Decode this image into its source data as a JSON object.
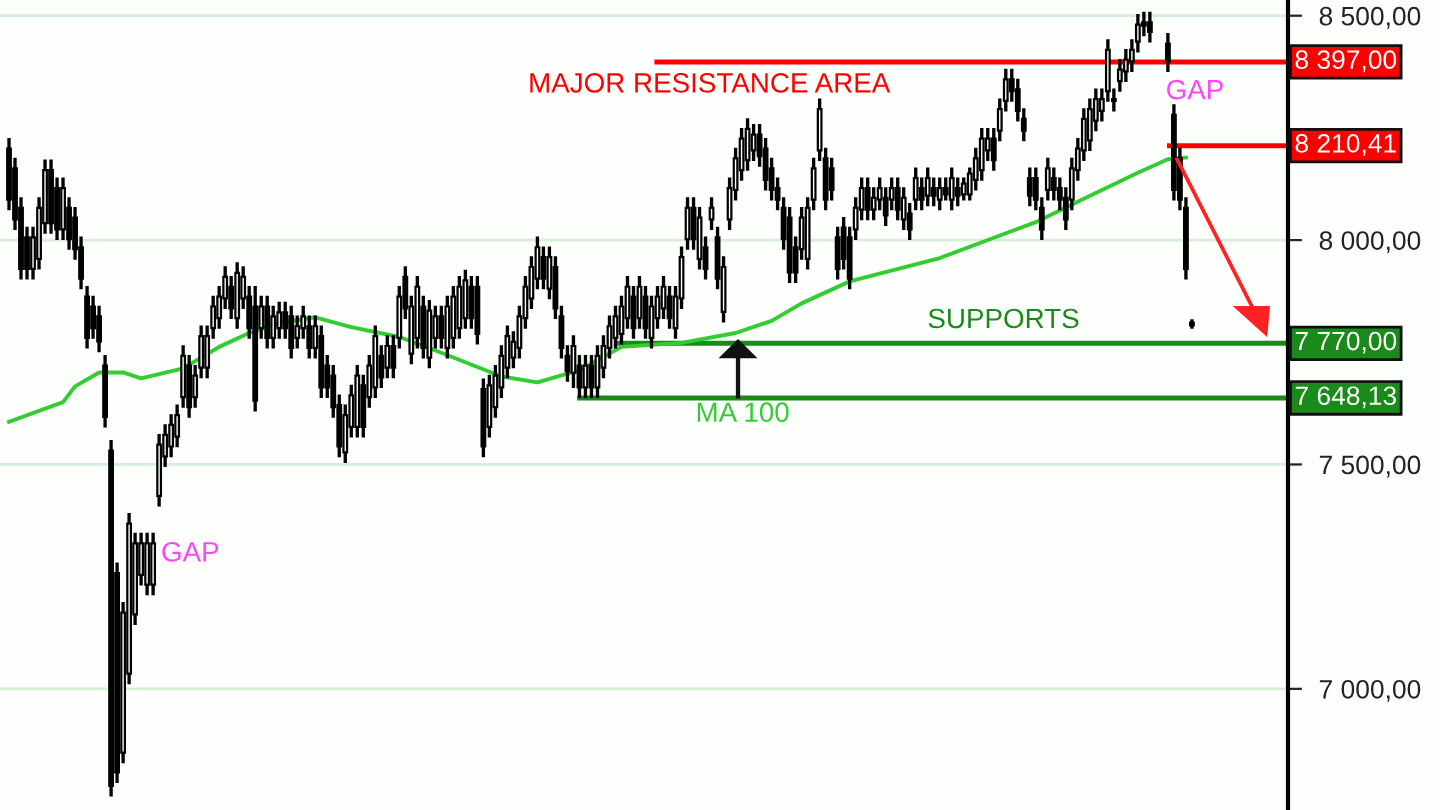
{
  "chart_data": {
    "type": "candlestick",
    "categories": [
      null,
      null,
      null,
      null,
      null,
      null,
      null,
      null,
      null,
      null,
      null,
      null,
      null,
      null,
      null,
      null,
      null,
      null,
      null,
      null,
      null,
      null,
      null,
      null,
      null,
      null,
      null,
      null,
      null,
      null,
      null,
      null,
      null,
      null,
      null,
      null,
      null,
      null,
      null,
      null,
      null,
      null,
      null,
      null,
      null,
      null,
      null,
      null,
      null,
      null,
      null,
      null,
      null,
      null,
      null,
      null,
      null,
      null,
      null,
      null,
      null,
      null,
      null,
      null,
      null,
      null,
      null,
      null,
      null,
      null,
      null,
      null,
      null,
      null,
      null,
      null,
      null,
      null,
      null,
      null,
      null,
      null,
      null,
      null,
      null,
      null,
      null,
      null,
      null,
      null,
      null,
      null,
      null,
      null,
      null,
      null,
      null,
      null,
      null,
      null,
      null,
      null,
      null,
      null,
      null,
      null,
      null,
      null,
      null,
      null,
      null,
      null,
      null,
      null,
      null,
      null,
      null,
      null,
      null,
      null,
      null,
      null,
      null,
      null,
      null,
      null,
      null,
      null,
      null,
      null,
      null,
      null,
      null,
      null,
      null,
      null,
      null,
      null,
      null,
      null,
      null,
      null,
      null,
      null,
      null,
      null,
      null,
      null,
      null,
      null,
      null,
      null,
      null,
      null,
      null,
      null,
      null,
      null,
      null,
      null,
      null,
      null,
      null,
      null,
      null,
      null,
      null,
      null,
      null,
      null,
      null,
      null,
      null,
      null,
      null,
      null,
      null,
      null,
      null,
      null,
      null,
      null,
      null,
      null,
      null,
      null,
      null,
      null,
      null,
      null,
      null,
      null,
      null,
      null,
      null,
      null,
      null,
      null
    ],
    "ohlc": [
      [
        8204,
        8224,
        8070,
        8090
      ],
      [
        8160,
        8180,
        8026,
        8046
      ],
      [
        8072,
        8092,
        7916,
        7936
      ],
      [
        8006,
        8026,
        7916,
        7936
      ],
      [
        7936,
        8026,
        7916,
        8006
      ],
      [
        7958,
        8092,
        7938,
        8072
      ],
      [
        8038,
        8176,
        8018,
        8156
      ],
      [
        8156,
        8176,
        8018,
        8038
      ],
      [
        8116,
        8136,
        8004,
        8024
      ],
      [
        8024,
        8136,
        8004,
        8116
      ],
      [
        8072,
        8092,
        7982,
        8002
      ],
      [
        8050,
        8070,
        7960,
        7980
      ],
      [
        7984,
        8004,
        7894,
        7914
      ],
      [
        7874,
        7894,
        7762,
        7782
      ],
      [
        7852,
        7872,
        7784,
        7804
      ],
      [
        7830,
        7850,
        7754,
        7774
      ],
      [
        7720,
        7740,
        7586,
        7606
      ],
      [
        7531,
        7551,
        6764,
        6784
      ],
      [
        7258,
        7278,
        6794,
        6814
      ],
      [
        6858,
        7190,
        6838,
        7170
      ],
      [
        7034,
        7388,
        7014,
        7368
      ],
      [
        7166,
        7344,
        7146,
        7324
      ],
      [
        7254,
        7344,
        7234,
        7324
      ],
      [
        7232,
        7344,
        7212,
        7324
      ],
      [
        7232,
        7344,
        7212,
        7324
      ],
      [
        7430,
        7564,
        7410,
        7544
      ],
      [
        7518,
        7586,
        7498,
        7566
      ],
      [
        7540,
        7608,
        7520,
        7588
      ],
      [
        7562,
        7630,
        7542,
        7610
      ],
      [
        7650,
        7762,
        7630,
        7742
      ],
      [
        7720,
        7740,
        7608,
        7628
      ],
      [
        7650,
        7718,
        7630,
        7698
      ],
      [
        7716,
        7806,
        7696,
        7786
      ],
      [
        7716,
        7806,
        7696,
        7786
      ],
      [
        7804,
        7872,
        7784,
        7852
      ],
      [
        7826,
        7894,
        7806,
        7874
      ],
      [
        7870,
        7938,
        7850,
        7918
      ],
      [
        7896,
        7916,
        7828,
        7848
      ],
      [
        7826,
        7947,
        7806,
        7927
      ],
      [
        7870,
        7938,
        7850,
        7918
      ],
      [
        7874,
        7894,
        7784,
        7804
      ],
      [
        7852,
        7894,
        7622,
        7642
      ],
      [
        7804,
        7872,
        7784,
        7852
      ],
      [
        7852,
        7872,
        7762,
        7782
      ],
      [
        7782,
        7850,
        7762,
        7830
      ],
      [
        7804,
        7859,
        7784,
        7839
      ],
      [
        7839,
        7859,
        7784,
        7804
      ],
      [
        7830,
        7850,
        7740,
        7760
      ],
      [
        7782,
        7828,
        7762,
        7808
      ],
      [
        7804,
        7850,
        7784,
        7830
      ],
      [
        7808,
        7828,
        7740,
        7760
      ],
      [
        7760,
        7828,
        7740,
        7808
      ],
      [
        7786,
        7806,
        7652,
        7672
      ],
      [
        7720,
        7740,
        7652,
        7672
      ],
      [
        7698,
        7718,
        7608,
        7628
      ],
      [
        7632,
        7652,
        7520,
        7540
      ],
      [
        7527,
        7630,
        7507,
        7610
      ],
      [
        7584,
        7674,
        7564,
        7654
      ],
      [
        7584,
        7718,
        7564,
        7698
      ],
      [
        7676,
        7696,
        7564,
        7584
      ],
      [
        7650,
        7740,
        7630,
        7720
      ],
      [
        7672,
        7806,
        7652,
        7786
      ],
      [
        7742,
        7762,
        7674,
        7694
      ],
      [
        7716,
        7784,
        7696,
        7764
      ],
      [
        7764,
        7784,
        7696,
        7716
      ],
      [
        7782,
        7894,
        7762,
        7874
      ],
      [
        7918,
        7938,
        7828,
        7848
      ],
      [
        7747,
        7872,
        7727,
        7852
      ],
      [
        7782,
        7916,
        7762,
        7896
      ],
      [
        7852,
        7872,
        7740,
        7760
      ],
      [
        7738,
        7863,
        7718,
        7843
      ],
      [
        7782,
        7850,
        7762,
        7830
      ],
      [
        7830,
        7850,
        7762,
        7782
      ],
      [
        7760,
        7872,
        7740,
        7852
      ],
      [
        7782,
        7894,
        7762,
        7874
      ],
      [
        7804,
        7916,
        7784,
        7896
      ],
      [
        7826,
        7930,
        7806,
        7910
      ],
      [
        7896,
        7916,
        7806,
        7826
      ],
      [
        7896,
        7916,
        7771,
        7791
      ],
      [
        7668,
        7688,
        7520,
        7540
      ],
      [
        7584,
        7696,
        7564,
        7676
      ],
      [
        7628,
        7718,
        7608,
        7698
      ],
      [
        7672,
        7762,
        7652,
        7742
      ],
      [
        7716,
        7806,
        7696,
        7786
      ],
      [
        7738,
        7793,
        7718,
        7773
      ],
      [
        7760,
        7850,
        7740,
        7830
      ],
      [
        7826,
        7916,
        7806,
        7896
      ],
      [
        7870,
        7960,
        7850,
        7940
      ],
      [
        7914,
        8004,
        7894,
        7984
      ],
      [
        7962,
        7982,
        7894,
        7914
      ],
      [
        7892,
        7982,
        7872,
        7962
      ],
      [
        7940,
        7960,
        7828,
        7848
      ],
      [
        7830,
        7850,
        7740,
        7760
      ],
      [
        7742,
        7762,
        7688,
        7708
      ],
      [
        7704,
        7784,
        7674,
        7764
      ],
      [
        7720,
        7740,
        7652,
        7672
      ],
      [
        7672,
        7740,
        7652,
        7720
      ],
      [
        7720,
        7740,
        7652,
        7672
      ],
      [
        7672,
        7762,
        7652,
        7742
      ],
      [
        7716,
        7784,
        7696,
        7764
      ],
      [
        7760,
        7828,
        7740,
        7808
      ],
      [
        7782,
        7850,
        7762,
        7830
      ],
      [
        7791,
        7872,
        7771,
        7852
      ],
      [
        7826,
        7916,
        7806,
        7896
      ],
      [
        7874,
        7894,
        7784,
        7804
      ],
      [
        7826,
        7916,
        7806,
        7896
      ],
      [
        7874,
        7894,
        7784,
        7804
      ],
      [
        7782,
        7872,
        7762,
        7852
      ],
      [
        7826,
        7894,
        7806,
        7874
      ],
      [
        7848,
        7916,
        7828,
        7896
      ],
      [
        7874,
        7894,
        7806,
        7826
      ],
      [
        7804,
        7894,
        7784,
        7874
      ],
      [
        7870,
        7982,
        7850,
        7962
      ],
      [
        8002,
        8092,
        7982,
        8072
      ],
      [
        8072,
        8092,
        7982,
        8002
      ],
      [
        7958,
        8070,
        7938,
        8050
      ],
      [
        7984,
        8004,
        7916,
        7936
      ],
      [
        8046,
        8092,
        8026,
        8072
      ],
      [
        8006,
        8026,
        7894,
        7914
      ],
      [
        7840,
        7960,
        7820,
        7940
      ],
      [
        8046,
        8136,
        8026,
        8116
      ],
      [
        8112,
        8202,
        8092,
        8182
      ],
      [
        8156,
        8246,
        8136,
        8226
      ],
      [
        8178,
        8268,
        8158,
        8248
      ],
      [
        8200,
        8255,
        8180,
        8235
      ],
      [
        8235,
        8255,
        8167,
        8187
      ],
      [
        8204,
        8224,
        8114,
        8134
      ],
      [
        8160,
        8180,
        8092,
        8112
      ],
      [
        8116,
        8136,
        8070,
        8090
      ],
      [
        8072,
        8092,
        7982,
        8002
      ],
      [
        8050,
        8070,
        7908,
        7928
      ],
      [
        7984,
        8004,
        7908,
        7928
      ],
      [
        7980,
        8070,
        7960,
        8050
      ],
      [
        7958,
        8092,
        7938,
        8072
      ],
      [
        8090,
        8180,
        8070,
        8160
      ],
      [
        8200,
        8312,
        8180,
        8292
      ],
      [
        8182,
        8202,
        8070,
        8090
      ],
      [
        8160,
        8180,
        8092,
        8112
      ],
      [
        8006,
        8026,
        7916,
        7936
      ],
      [
        8028,
        8048,
        7938,
        7958
      ],
      [
        8006,
        8026,
        7894,
        7914
      ],
      [
        8024,
        8092,
        8004,
        8072
      ],
      [
        8068,
        8136,
        8048,
        8116
      ],
      [
        8116,
        8136,
        8048,
        8068
      ],
      [
        8068,
        8114,
        8048,
        8094
      ],
      [
        8090,
        8136,
        8070,
        8116
      ],
      [
        8094,
        8114,
        8035,
        8055
      ],
      [
        8090,
        8136,
        8070,
        8116
      ],
      [
        8116,
        8136,
        8048,
        8068
      ],
      [
        8046,
        8114,
        8026,
        8094
      ],
      [
        8059,
        8079,
        8004,
        8024
      ],
      [
        8090,
        8158,
        8070,
        8138
      ],
      [
        8116,
        8136,
        8070,
        8090
      ],
      [
        8099,
        8158,
        8079,
        8138
      ],
      [
        8116,
        8136,
        8079,
        8099
      ],
      [
        8090,
        8136,
        8070,
        8116
      ],
      [
        8116,
        8136,
        8092,
        8102
      ],
      [
        8090,
        8158,
        8070,
        8138
      ],
      [
        8116,
        8136,
        8079,
        8099
      ],
      [
        8102,
        8136,
        8092,
        8126
      ],
      [
        8102,
        8158,
        8092,
        8148
      ],
      [
        8134,
        8202,
        8114,
        8182
      ],
      [
        8156,
        8246,
        8136,
        8226
      ],
      [
        8200,
        8246,
        8180,
        8226
      ],
      [
        8226,
        8246,
        8158,
        8178
      ],
      [
        8244,
        8312,
        8224,
        8292
      ],
      [
        8310,
        8378,
        8290,
        8358
      ],
      [
        8358,
        8378,
        8312,
        8332
      ],
      [
        8336,
        8356,
        8268,
        8288
      ],
      [
        8270,
        8290,
        8224,
        8244
      ],
      [
        8138,
        8158,
        8079,
        8099
      ],
      [
        8138,
        8158,
        8070,
        8090
      ],
      [
        8072,
        8092,
        8004,
        8024
      ],
      [
        8112,
        8180,
        8092,
        8160
      ],
      [
        8138,
        8158,
        8092,
        8112
      ],
      [
        8116,
        8136,
        8070,
        8090
      ],
      [
        8094,
        8114,
        8026,
        8046
      ],
      [
        8090,
        8180,
        8070,
        8160
      ],
      [
        8156,
        8224,
        8136,
        8204
      ],
      [
        8200,
        8290,
        8180,
        8270
      ],
      [
        8222,
        8312,
        8202,
        8292
      ],
      [
        8266,
        8334,
        8246,
        8314
      ],
      [
        8288,
        8334,
        8268,
        8314
      ],
      [
        8332,
        8444,
        8312,
        8424
      ],
      [
        8314,
        8334,
        8290,
        8310
      ],
      [
        8354,
        8400,
        8334,
        8380
      ],
      [
        8376,
        8422,
        8356,
        8402
      ],
      [
        8398,
        8444,
        8378,
        8424
      ],
      [
        8442,
        8500,
        8422,
        8480
      ],
      [
        8485,
        8505,
        8458,
        8478
      ],
      [
        8485,
        8505,
        8444,
        8464
      ],
      null,
      null,
      [
        8438,
        8458,
        8378,
        8398
      ],
      [
        8279,
        8299,
        8092,
        8112
      ],
      [
        8182,
        8202,
        8070,
        8090
      ],
      [
        8072,
        8092,
        7916,
        7936
      ],
      [
        7816,
        7820,
        7806,
        7810
      ]
    ],
    "color": "#000000",
    "series": [
      {
        "name": "MA 100",
        "type": "line",
        "color": "#33cc33",
        "values": [
          7595,
          null,
          null,
          null,
          null,
          null,
          null,
          null,
          null,
          7639,
          null,
          7674,
          null,
          null,
          null,
          7705,
          null,
          null,
          null,
          7705,
          null,
          null,
          7692,
          null,
          null,
          null,
          null,
          null,
          null,
          7714,
          null,
          null,
          null,
          null,
          null,
          7762,
          null,
          null,
          null,
          null,
          7793,
          null,
          null,
          null,
          null,
          7815,
          null,
          null,
          null,
          null,
          null,
          7828,
          null,
          null,
          null,
          null,
          null,
          7806,
          null,
          null,
          null,
          null,
          null,
          null,
          null,
          7784,
          null,
          null,
          null,
          null,
          null,
          null,
          7749,
          null,
          null,
          null,
          null,
          null,
          null,
          null,
          null,
          null,
          7696,
          null,
          null,
          null,
          null,
          null,
          7683,
          null,
          null,
          null,
          null,
          null,
          null,
          7710,
          null,
          null,
          null,
          null,
          null,
          null,
          7762,
          null,
          null,
          null,
          null,
          null,
          null,
          null,
          null,
          null,
          7771,
          null,
          null,
          null,
          null,
          null,
          null,
          null,
          null,
          7793,
          null,
          null,
          null,
          null,
          null,
          7820,
          null,
          null,
          null,
          null,
          7859,
          null,
          null,
          null,
          null,
          null,
          null,
          null,
          7908,
          null,
          null,
          null,
          null,
          null,
          null,
          null,
          null,
          null,
          null,
          null,
          null,
          null,
          null,
          7960,
          null,
          null,
          null,
          null,
          null,
          null,
          null,
          null,
          null,
          null,
          null,
          null,
          null,
          null,
          null,
          8040,
          null,
          null,
          null,
          null,
          null,
          null,
          null,
          8092,
          null,
          null,
          null,
          null,
          null,
          null,
          null,
          null,
          8150,
          null,
          null,
          null,
          null,
          8180,
          null,
          null,
          8184,
          null
        ]
      }
    ],
    "ylim": [
      6730,
      8535
    ],
    "yticks": [
      {
        "value": 7000,
        "label": "7 000,00"
      },
      {
        "value": 7500,
        "label": "7 500,00"
      },
      {
        "value": 8000,
        "label": "8 000,00"
      },
      {
        "value": 8500,
        "label": "8 500,00"
      }
    ],
    "grid": "y",
    "tick_labels": "y",
    "ref_lines": [
      {
        "axis": "y",
        "value": 8397,
        "label": "8 397,00",
        "color": "#ff0000"
      },
      {
        "axis": "y",
        "value": 8210.41,
        "label": "8 210,41",
        "color": "#ff0000"
      },
      {
        "axis": "y",
        "value": 7770,
        "label": "7 770,00",
        "color": "#1a8a1a"
      },
      {
        "axis": "y",
        "value": 7648.13,
        "label": "7 648,13",
        "color": "#1a8a1a"
      }
    ],
    "annotations": [
      "MAJOR RESISTANCE AREA",
      "GAP",
      "GAP",
      "SUPPORTS"
    ]
  }
}
